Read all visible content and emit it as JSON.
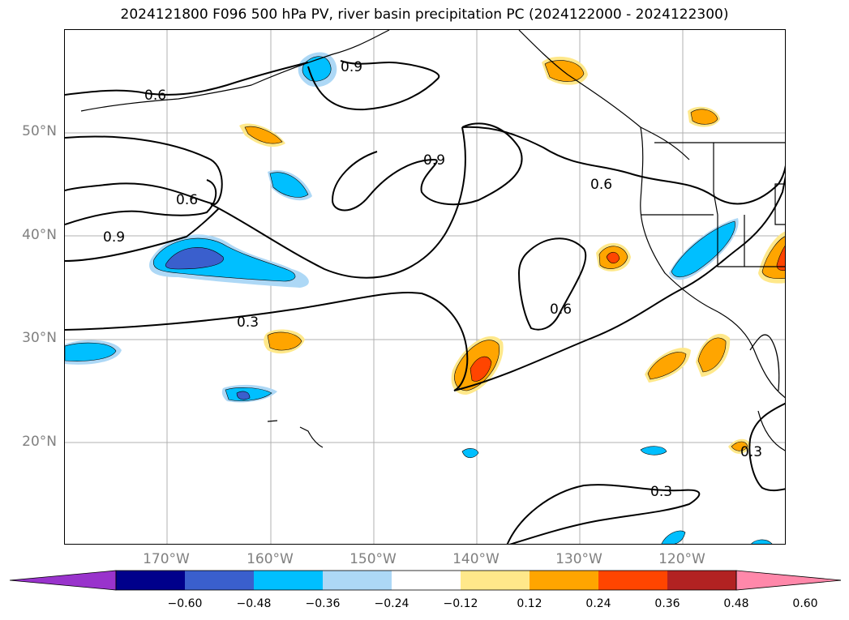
{
  "title": "2024121800 F096 500 hPa PV, river basin precipitation PC (2024122000 - 2024122300)",
  "lat_labels": [
    "50°N",
    "40°N",
    "30°N",
    "20°N"
  ],
  "lon_labels": [
    "170°W",
    "160°W",
    "150°W",
    "140°W",
    "130°W",
    "120°W"
  ],
  "contour_labels": [
    "0.6",
    "0.9",
    "0.6",
    "0.9",
    "0.9",
    "0.6",
    "0.3",
    "0.6",
    "0.3",
    "0.3"
  ],
  "colorbar": {
    "colors": [
      "#9933cc",
      "#00008b",
      "#3a5fcd",
      "#00bfff",
      "#add8f6",
      "#ffffff",
      "#ffe88a",
      "#ffa500",
      "#ff4500",
      "#b22222",
      "#ff88aa"
    ],
    "tick_labels": [
      "−0.60",
      "−0.48",
      "−0.36",
      "−0.24",
      "−0.12",
      "0.12",
      "0.24",
      "0.36",
      "0.48",
      "0.60"
    ]
  }
}
